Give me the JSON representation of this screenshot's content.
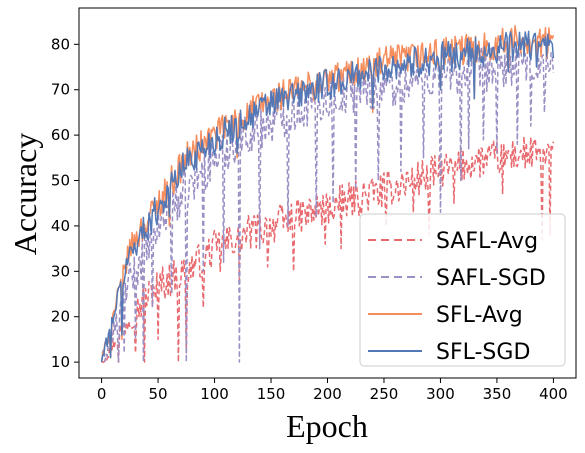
{
  "chart_data": {
    "type": "line",
    "title": "",
    "xlabel": "Epoch",
    "ylabel": "Accuracy",
    "xlim": [
      -20,
      420
    ],
    "ylim": [
      6.5,
      88
    ],
    "xticks": [
      0,
      50,
      100,
      150,
      200,
      250,
      300,
      350,
      400
    ],
    "yticks": [
      10,
      20,
      30,
      40,
      50,
      60,
      70,
      80
    ],
    "grid": false,
    "legend_position": "lower-right",
    "series": [
      {
        "name": "SAFL-Avg",
        "color": "#e8696e",
        "dash": "dashed",
        "anchors": [
          [
            0,
            10
          ],
          [
            10,
            14
          ],
          [
            25,
            20
          ],
          [
            50,
            27
          ],
          [
            75,
            30
          ],
          [
            100,
            35
          ],
          [
            125,
            38
          ],
          [
            150,
            40
          ],
          [
            175,
            42
          ],
          [
            200,
            44
          ],
          [
            225,
            46
          ],
          [
            250,
            48
          ],
          [
            275,
            50
          ],
          [
            300,
            52
          ],
          [
            325,
            54
          ],
          [
            350,
            55
          ],
          [
            375,
            56
          ],
          [
            400,
            55
          ]
        ],
        "noise": 4,
        "dips": [
          [
            15,
            10
          ],
          [
            30,
            12
          ],
          [
            38,
            10
          ],
          [
            50,
            15
          ],
          [
            68,
            10
          ],
          [
            75,
            12
          ],
          [
            90,
            22
          ],
          [
            105,
            30
          ],
          [
            122,
            28
          ],
          [
            147,
            31
          ],
          [
            170,
            30
          ],
          [
            198,
            36
          ],
          [
            212,
            35
          ],
          [
            252,
            40
          ],
          [
            276,
            43
          ],
          [
            290,
            38
          ],
          [
            312,
            45
          ],
          [
            355,
            47
          ],
          [
            390,
            37
          ],
          [
            397,
            38
          ]
        ]
      },
      {
        "name": "SAFL-SGD",
        "color": "#9b8fc4",
        "dash": "dashed",
        "anchors": [
          [
            0,
            10
          ],
          [
            10,
            16
          ],
          [
            25,
            28
          ],
          [
            50,
            40
          ],
          [
            75,
            48
          ],
          [
            100,
            55
          ],
          [
            125,
            60
          ],
          [
            150,
            63
          ],
          [
            175,
            66
          ],
          [
            200,
            68
          ],
          [
            225,
            70
          ],
          [
            250,
            71
          ],
          [
            275,
            72
          ],
          [
            300,
            73
          ],
          [
            325,
            74
          ],
          [
            350,
            75
          ],
          [
            375,
            76
          ],
          [
            400,
            75
          ]
        ],
        "noise": 5,
        "dips": [
          [
            15,
            10
          ],
          [
            20,
            12
          ],
          [
            30,
            15
          ],
          [
            37,
            10
          ],
          [
            45,
            22
          ],
          [
            62,
            25
          ],
          [
            75,
            10
          ],
          [
            90,
            30
          ],
          [
            108,
            32
          ],
          [
            122,
            10
          ],
          [
            140,
            35
          ],
          [
            165,
            40
          ],
          [
            190,
            42
          ],
          [
            205,
            45
          ],
          [
            225,
            48
          ],
          [
            245,
            50
          ],
          [
            265,
            52
          ],
          [
            285,
            55
          ],
          [
            300,
            43
          ],
          [
            318,
            50
          ],
          [
            325,
            57
          ],
          [
            338,
            59
          ],
          [
            350,
            56
          ],
          [
            368,
            58
          ],
          [
            380,
            62
          ],
          [
            392,
            65
          ]
        ]
      },
      {
        "name": "SFL-Avg",
        "color": "#f58d5c",
        "dash": "solid",
        "anchors": [
          [
            0,
            10
          ],
          [
            10,
            20
          ],
          [
            25,
            35
          ],
          [
            50,
            45
          ],
          [
            75,
            55
          ],
          [
            100,
            60
          ],
          [
            125,
            64
          ],
          [
            150,
            68
          ],
          [
            175,
            70
          ],
          [
            200,
            72
          ],
          [
            225,
            74
          ],
          [
            250,
            76
          ],
          [
            275,
            77
          ],
          [
            300,
            78
          ],
          [
            325,
            79
          ],
          [
            350,
            80
          ],
          [
            375,
            81
          ],
          [
            400,
            80
          ]
        ],
        "noise": 3.5,
        "dips": [
          [
            8,
            11
          ],
          [
            18,
            15
          ],
          [
            60,
            40
          ],
          [
            120,
            55
          ],
          [
            240,
            65
          ],
          [
            300,
            70
          ],
          [
            330,
            68
          ],
          [
            360,
            74
          ],
          [
            385,
            76
          ]
        ]
      },
      {
        "name": "SFL-SGD",
        "color": "#5477b5",
        "dash": "solid",
        "anchors": [
          [
            0,
            10
          ],
          [
            10,
            20
          ],
          [
            25,
            34
          ],
          [
            50,
            44
          ],
          [
            75,
            54
          ],
          [
            100,
            59
          ],
          [
            125,
            63
          ],
          [
            150,
            67
          ],
          [
            175,
            69
          ],
          [
            200,
            71
          ],
          [
            225,
            73
          ],
          [
            250,
            75
          ],
          [
            275,
            76
          ],
          [
            300,
            77
          ],
          [
            325,
            78
          ],
          [
            350,
            79
          ],
          [
            375,
            80
          ],
          [
            400,
            79
          ]
        ],
        "noise": 3.5,
        "dips": [
          [
            8,
            11
          ],
          [
            18,
            16
          ],
          [
            60,
            42
          ],
          [
            120,
            56
          ],
          [
            240,
            66
          ],
          [
            300,
            70
          ],
          [
            330,
            68
          ],
          [
            360,
            74
          ],
          [
            385,
            75
          ]
        ]
      }
    ]
  }
}
